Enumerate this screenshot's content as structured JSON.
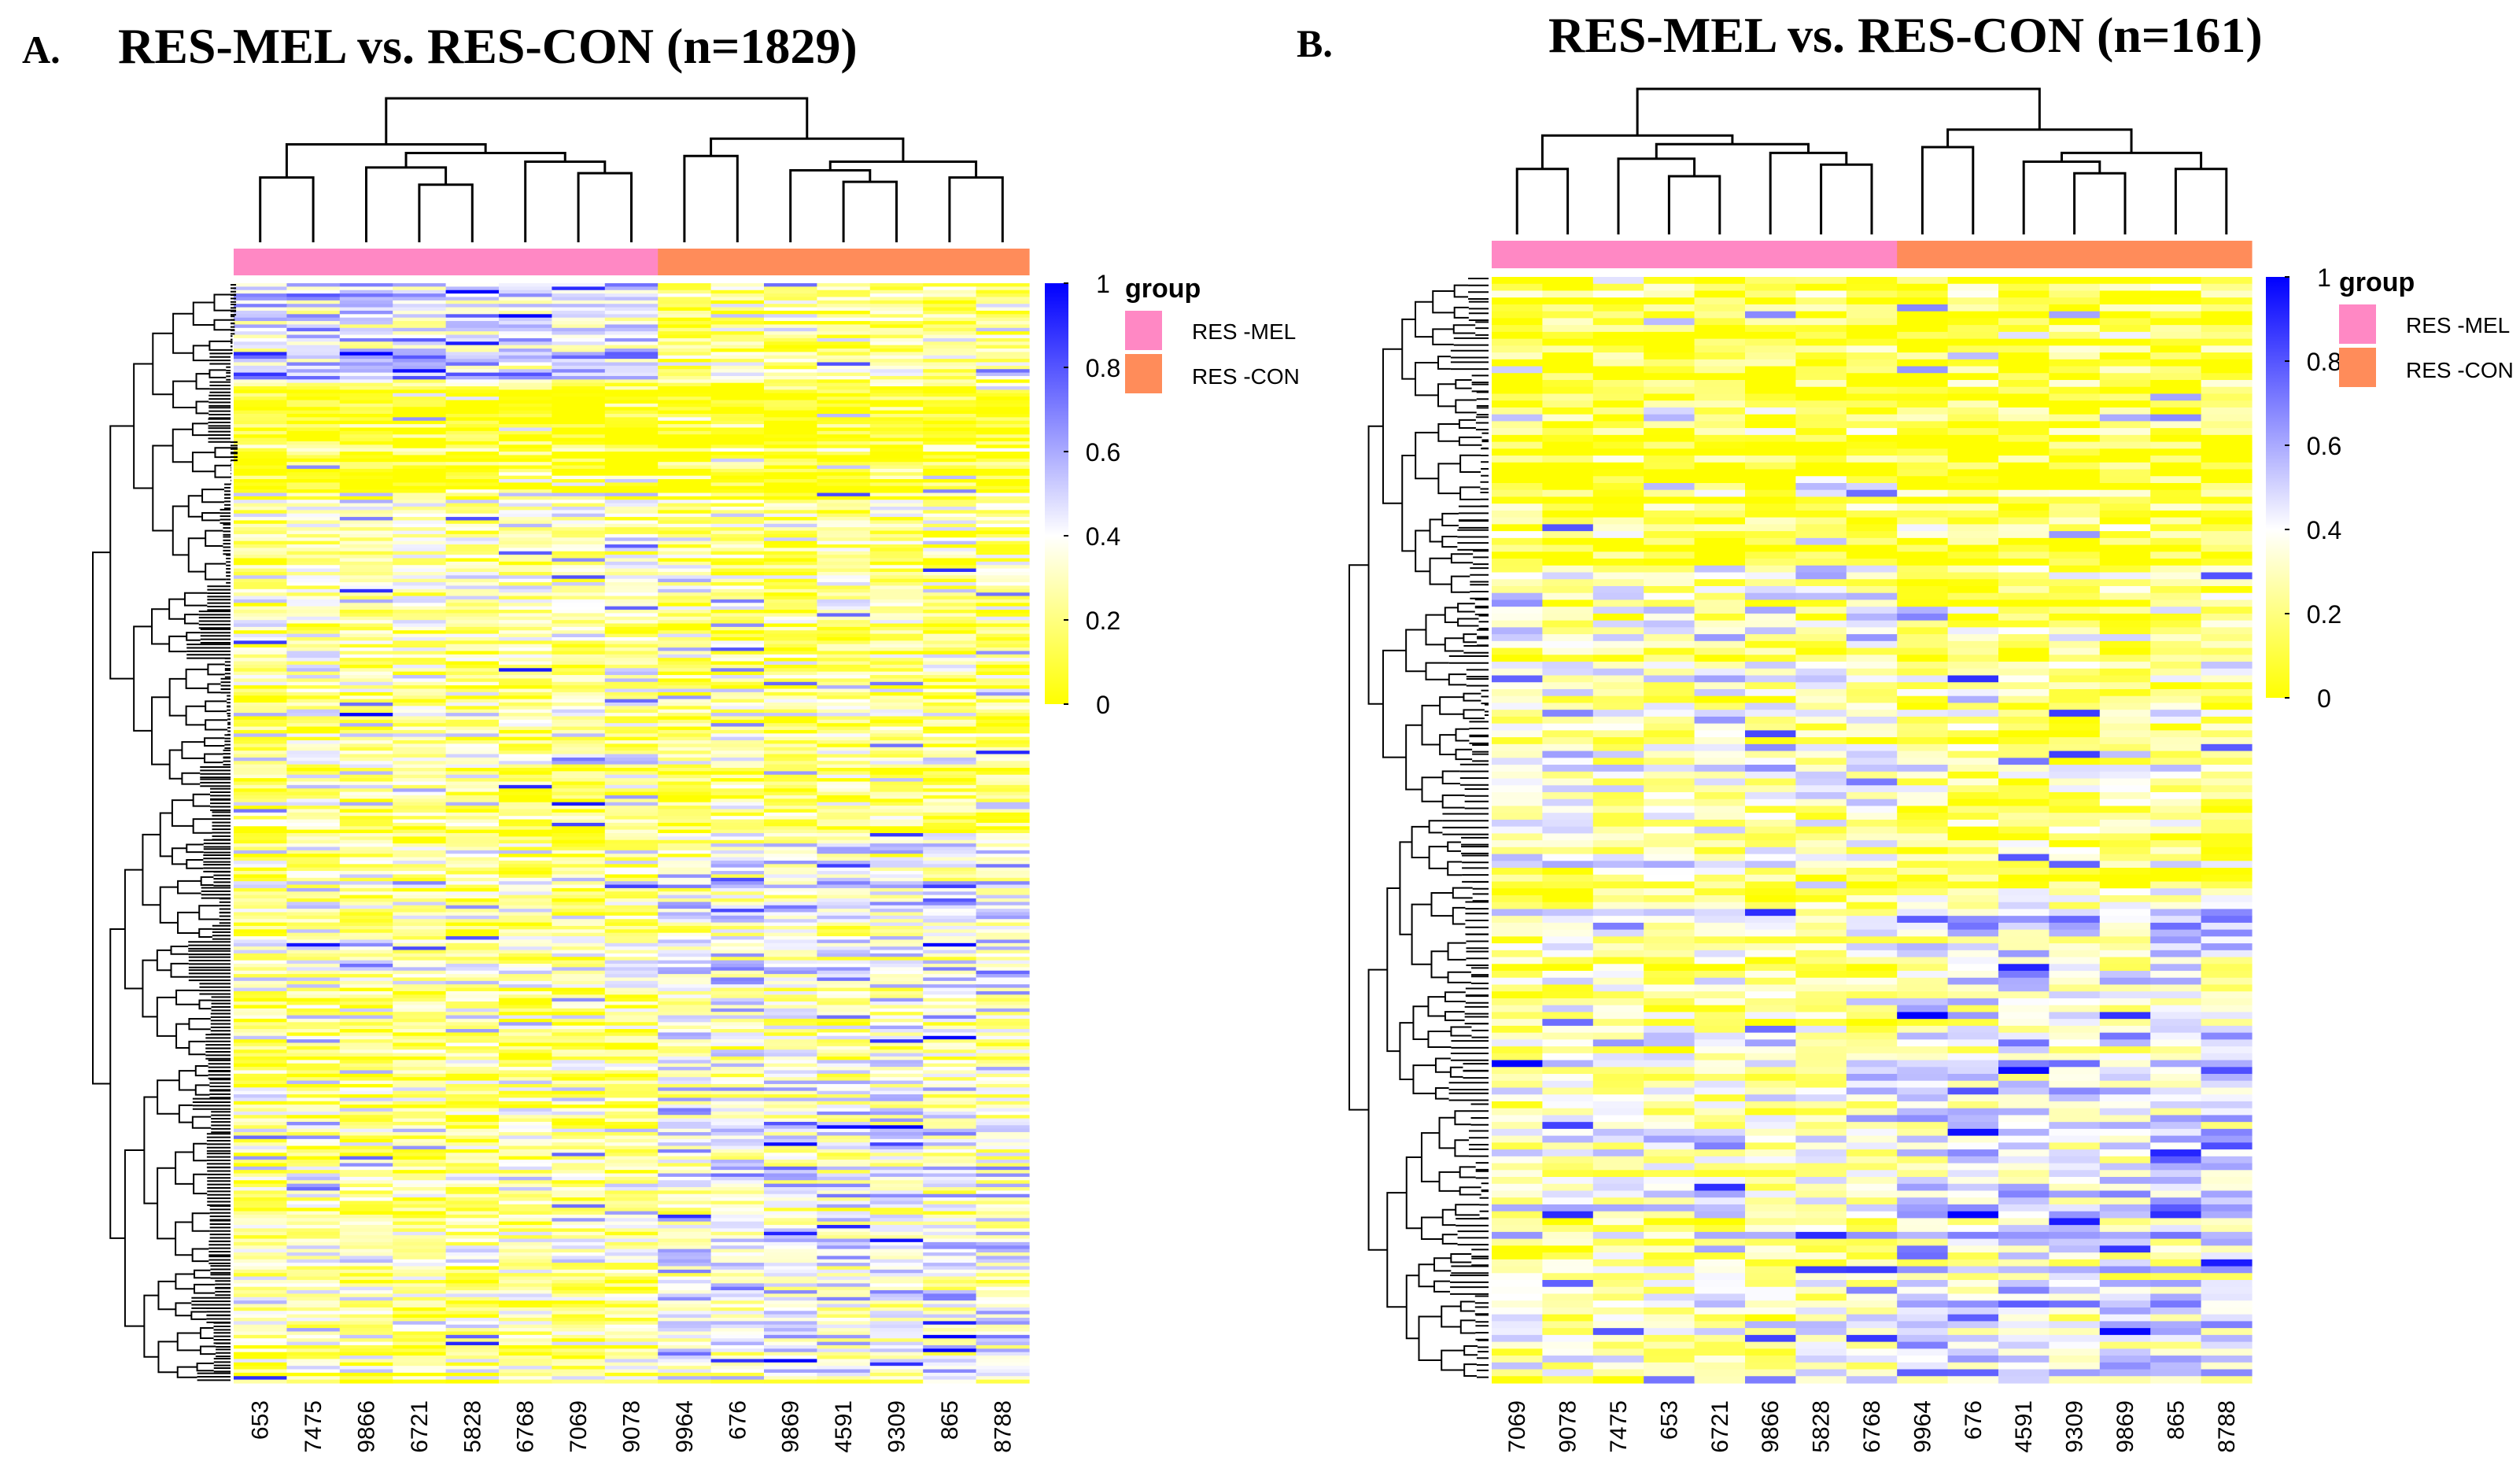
{
  "colors": {
    "low": "#ffff00",
    "mid": "#ffffff",
    "high": "#0000ff",
    "res_mel": "#ff88c4",
    "res_con": "#ff8c5a"
  },
  "chart_data": [
    {
      "type": "heatmap",
      "panel_label": "A.",
      "title": "RES-MEL vs. RES-CON (n=1829)",
      "n_rows": 1829,
      "columns": [
        "653",
        "7475",
        "9866",
        "6721",
        "5828",
        "6768",
        "7069",
        "9078",
        "9964",
        "676",
        "9869",
        "4591",
        "9309",
        "865",
        "8788"
      ],
      "column_groups": [
        "RES -MEL",
        "RES -MEL",
        "RES -MEL",
        "RES -MEL",
        "RES -MEL",
        "RES -MEL",
        "RES -MEL",
        "RES -MEL",
        "RES -CON",
        "RES -CON",
        "RES -CON",
        "RES -CON",
        "RES -CON",
        "RES -CON",
        "RES -CON"
      ],
      "value_range": [
        0,
        1
      ],
      "color_scale_ticks": [
        "0",
        "0.2",
        "0.4",
        "0.6",
        "0.8",
        "1"
      ],
      "legend": {
        "title": "group",
        "entries": [
          "RES -MEL",
          "RES -CON"
        ]
      },
      "row_dendrogram": true,
      "column_dendrogram": true
    },
    {
      "type": "heatmap",
      "panel_label": "B.",
      "title": "RES-MEL vs. RES-CON (n=161)",
      "n_rows": 161,
      "columns": [
        "7069",
        "9078",
        "7475",
        "653",
        "6721",
        "9866",
        "5828",
        "6768",
        "9964",
        "676",
        "4591",
        "9309",
        "9869",
        "865",
        "8788"
      ],
      "column_groups": [
        "RES -MEL",
        "RES -MEL",
        "RES -MEL",
        "RES -MEL",
        "RES -MEL",
        "RES -MEL",
        "RES -MEL",
        "RES -MEL",
        "RES -CON",
        "RES -CON",
        "RES -CON",
        "RES -CON",
        "RES -CON",
        "RES -CON",
        "RES -CON"
      ],
      "value_range": [
        0,
        1
      ],
      "color_scale_ticks": [
        "0",
        "0.2",
        "0.4",
        "0.6",
        "0.8",
        "1"
      ],
      "legend": {
        "title": "group",
        "entries": [
          "RES -MEL",
          "RES -CON"
        ]
      },
      "row_dendrogram": true,
      "column_dendrogram": true
    }
  ]
}
